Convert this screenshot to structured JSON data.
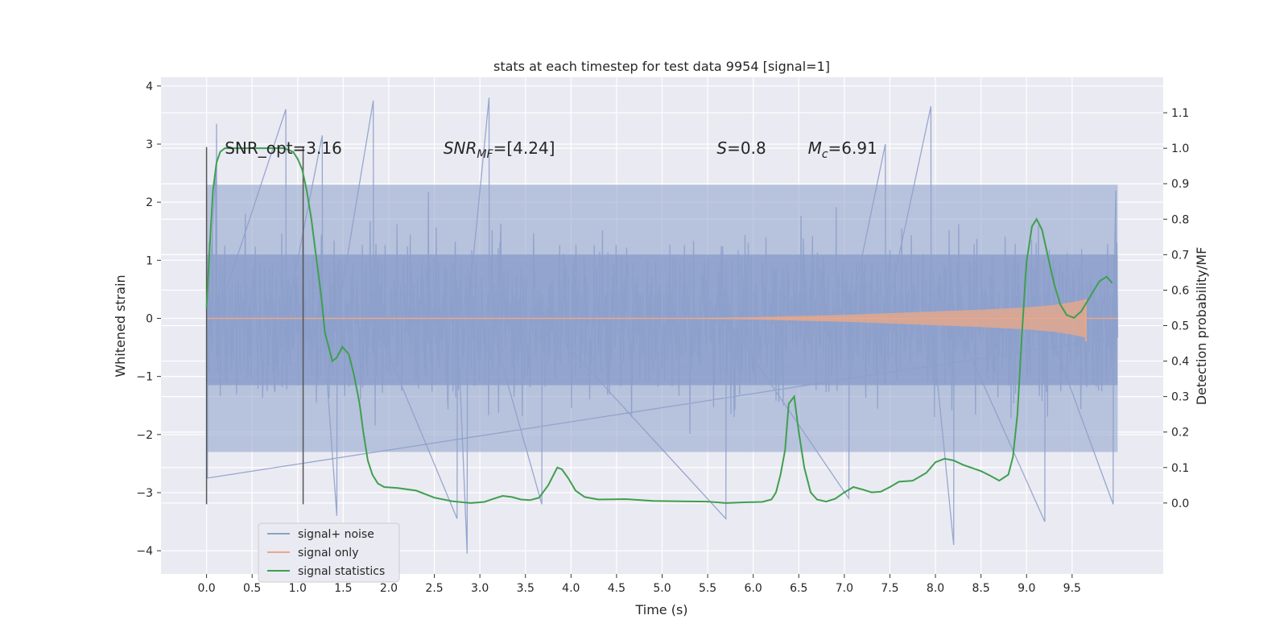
{
  "chart_data": {
    "type": "line",
    "title": "stats at each timestep for test data 9954 [signal=1]",
    "xlabel": "Time (s)",
    "ylabel_left": "Whitened strain",
    "ylabel_right": "Detection probability/MF",
    "xlim": [
      -0.5,
      10.5
    ],
    "ylim_left": [
      -4.4,
      4.15
    ],
    "ylim_right": [
      -0.2,
      1.2
    ],
    "x_ticks": [
      0.0,
      0.5,
      1.0,
      1.5,
      2.0,
      2.5,
      3.0,
      3.5,
      4.0,
      4.5,
      5.0,
      5.5,
      6.0,
      6.5,
      7.0,
      7.5,
      8.0,
      8.5,
      9.0,
      9.5
    ],
    "x_tick_labels": [
      "0.0",
      "0.5",
      "1.0",
      "1.5",
      "2.0",
      "2.5",
      "3.0",
      "3.5",
      "4.0",
      "4.5",
      "5.0",
      "5.5",
      "6.0",
      "6.5",
      "7.0",
      "7.5",
      "8.0",
      "8.5",
      "9.0",
      "9.5"
    ],
    "y_left_ticks": [
      -4,
      -3,
      -2,
      -1,
      0,
      1,
      2,
      3,
      4
    ],
    "y_left_tick_labels": [
      "−4",
      "−3",
      "−2",
      "−1",
      "0",
      "1",
      "2",
      "3",
      "4"
    ],
    "y_right_ticks": [
      0.0,
      0.1,
      0.2,
      0.3,
      0.4,
      0.5,
      0.6,
      0.7,
      0.8,
      0.9,
      1.0,
      1.1
    ],
    "y_right_tick_labels": [
      "0.0",
      "0.1",
      "0.2",
      "0.3",
      "0.4",
      "0.5",
      "0.6",
      "0.7",
      "0.8",
      "0.9",
      "1.0",
      "1.1"
    ],
    "grid": true,
    "legend_position": "lower-left",
    "legend": [
      {
        "label": "signal+ noise",
        "color": "#8da0cb"
      },
      {
        "label": "signal only",
        "color": "#e8a88a"
      },
      {
        "label": "signal statistics",
        "color": "#3f9f4f"
      }
    ],
    "annotations": [
      {
        "text": "SNR_opt=3.16",
        "x": 0.2,
        "y": 1.0
      },
      {
        "base": "SNR",
        "sub": "MF",
        "rest": "=[4.24]",
        "x": 2.6,
        "y": 1.0
      },
      {
        "base": "S",
        "sub": "",
        "rest": "=0.8",
        "x": 5.6,
        "y": 1.0
      },
      {
        "base": "M",
        "sub": "c",
        "rest": "=6.91",
        "x": 6.6,
        "y": 1.0
      }
    ],
    "vertical_markers": [
      {
        "x": 0.0,
        "y_range": [
          -3.2,
          2.95
        ]
      },
      {
        "x": 1.06,
        "y_range": [
          -3.2,
          2.95
        ]
      }
    ],
    "series": [
      {
        "name": "signal+ noise",
        "color": "#8da0cb",
        "axis": "left",
        "x_range": [
          0.0,
          10.0
        ],
        "band_core": [
          -1.15,
          1.1
        ],
        "band_outer": [
          -2.3,
          2.3
        ],
        "extreme_points": [
          {
            "x": 0.01,
            "y": -2.75
          },
          {
            "x": 0.1,
            "y": 2.5
          },
          {
            "x": 0.11,
            "y": 3.35
          },
          {
            "x": 0.87,
            "y": 3.6
          },
          {
            "x": 1.27,
            "y": 3.15
          },
          {
            "x": 1.43,
            "y": -3.4
          },
          {
            "x": 1.83,
            "y": 3.75
          },
          {
            "x": 2.75,
            "y": -3.45
          },
          {
            "x": 2.86,
            "y": -4.05
          },
          {
            "x": 3.1,
            "y": 3.8
          },
          {
            "x": 3.68,
            "y": -3.2
          },
          {
            "x": 5.7,
            "y": -3.45
          },
          {
            "x": 7.05,
            "y": -3.1
          },
          {
            "x": 7.45,
            "y": 3.0
          },
          {
            "x": 7.95,
            "y": 3.65
          },
          {
            "x": 8.2,
            "y": -3.9
          },
          {
            "x": 9.2,
            "y": -3.5
          },
          {
            "x": 9.95,
            "y": -3.2
          },
          {
            "x": 9.98,
            "y": 2.2
          }
        ]
      },
      {
        "name": "signal only",
        "color": "#e8a88a",
        "axis": "left",
        "x_range": [
          0.0,
          10.0
        ],
        "envelope": [
          [
            0.0,
            0.0
          ],
          [
            5.0,
            0.0
          ],
          [
            6.0,
            0.02
          ],
          [
            7.0,
            0.06
          ],
          [
            8.0,
            0.12
          ],
          [
            8.5,
            0.15
          ],
          [
            9.0,
            0.19
          ],
          [
            9.3,
            0.23
          ],
          [
            9.5,
            0.28
          ],
          [
            9.65,
            0.33
          ]
        ],
        "chirp_end": 9.65,
        "chirp_min": -0.4
      },
      {
        "name": "signal statistics",
        "color": "#3f9f4f",
        "axis": "right",
        "points": [
          [
            0.0,
            0.55
          ],
          [
            0.03,
            0.7
          ],
          [
            0.07,
            0.88
          ],
          [
            0.11,
            0.96
          ],
          [
            0.15,
            0.99
          ],
          [
            0.2,
            1.0
          ],
          [
            0.3,
            1.0
          ],
          [
            0.5,
            1.0
          ],
          [
            0.7,
            1.0
          ],
          [
            0.85,
            1.0
          ],
          [
            0.95,
            0.99
          ],
          [
            1.0,
            0.97
          ],
          [
            1.05,
            0.94
          ],
          [
            1.1,
            0.88
          ],
          [
            1.15,
            0.8
          ],
          [
            1.2,
            0.7
          ],
          [
            1.26,
            0.58
          ],
          [
            1.3,
            0.48
          ],
          [
            1.34,
            0.44
          ],
          [
            1.38,
            0.4
          ],
          [
            1.43,
            0.41
          ],
          [
            1.49,
            0.44
          ],
          [
            1.56,
            0.42
          ],
          [
            1.62,
            0.36
          ],
          [
            1.68,
            0.28
          ],
          [
            1.72,
            0.2
          ],
          [
            1.77,
            0.12
          ],
          [
            1.82,
            0.08
          ],
          [
            1.88,
            0.055
          ],
          [
            1.95,
            0.045
          ],
          [
            2.1,
            0.042
          ],
          [
            2.3,
            0.035
          ],
          [
            2.5,
            0.015
          ],
          [
            2.7,
            0.005
          ],
          [
            2.9,
            0.0
          ],
          [
            3.05,
            0.003
          ],
          [
            3.15,
            0.012
          ],
          [
            3.25,
            0.02
          ],
          [
            3.35,
            0.017
          ],
          [
            3.45,
            0.01
          ],
          [
            3.55,
            0.008
          ],
          [
            3.65,
            0.015
          ],
          [
            3.75,
            0.05
          ],
          [
            3.85,
            0.1
          ],
          [
            3.9,
            0.095
          ],
          [
            3.97,
            0.07
          ],
          [
            4.05,
            0.035
          ],
          [
            4.15,
            0.017
          ],
          [
            4.3,
            0.01
          ],
          [
            4.6,
            0.011
          ],
          [
            4.9,
            0.006
          ],
          [
            5.2,
            0.005
          ],
          [
            5.5,
            0.004
          ],
          [
            5.7,
            0.0
          ],
          [
            5.9,
            0.002
          ],
          [
            6.1,
            0.003
          ],
          [
            6.2,
            0.01
          ],
          [
            6.25,
            0.03
          ],
          [
            6.3,
            0.08
          ],
          [
            6.35,
            0.15
          ],
          [
            6.39,
            0.28
          ],
          [
            6.45,
            0.3
          ],
          [
            6.5,
            0.2
          ],
          [
            6.56,
            0.1
          ],
          [
            6.63,
            0.03
          ],
          [
            6.7,
            0.01
          ],
          [
            6.8,
            0.004
          ],
          [
            6.9,
            0.012
          ],
          [
            7.0,
            0.03
          ],
          [
            7.1,
            0.045
          ],
          [
            7.2,
            0.038
          ],
          [
            7.3,
            0.03
          ],
          [
            7.4,
            0.032
          ],
          [
            7.5,
            0.045
          ],
          [
            7.6,
            0.06
          ],
          [
            7.75,
            0.063
          ],
          [
            7.9,
            0.085
          ],
          [
            8.0,
            0.115
          ],
          [
            8.1,
            0.125
          ],
          [
            8.2,
            0.12
          ],
          [
            8.3,
            0.108
          ],
          [
            8.5,
            0.09
          ],
          [
            8.6,
            0.077
          ],
          [
            8.7,
            0.063
          ],
          [
            8.8,
            0.08
          ],
          [
            8.85,
            0.13
          ],
          [
            8.9,
            0.25
          ],
          [
            8.95,
            0.48
          ],
          [
            9.0,
            0.68
          ],
          [
            9.06,
            0.78
          ],
          [
            9.11,
            0.8
          ],
          [
            9.17,
            0.77
          ],
          [
            9.23,
            0.7
          ],
          [
            9.3,
            0.62
          ],
          [
            9.37,
            0.56
          ],
          [
            9.44,
            0.53
          ],
          [
            9.52,
            0.522
          ],
          [
            9.6,
            0.54
          ],
          [
            9.67,
            0.57
          ],
          [
            9.74,
            0.6
          ],
          [
            9.8,
            0.625
          ],
          [
            9.88,
            0.638
          ],
          [
            9.94,
            0.62
          ]
        ]
      }
    ]
  }
}
